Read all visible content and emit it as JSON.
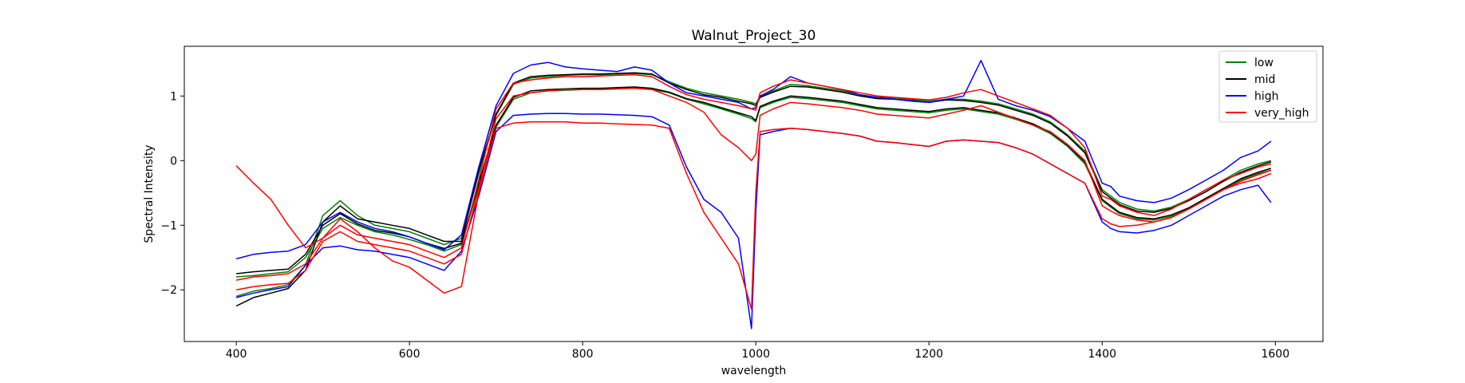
{
  "chart_data": {
    "type": "line",
    "title": "Walnut_Project_30",
    "xlabel": "wavelength",
    "ylabel": "Spectral Intensity",
    "xlim": [
      340,
      1655
    ],
    "ylim": [
      -2.8,
      1.77
    ],
    "xticks": [
      400,
      600,
      800,
      1000,
      1200,
      1400,
      1600
    ],
    "yticks": [
      -2,
      -1,
      0,
      1
    ],
    "grid": false,
    "legend_position": "top-right",
    "x": [
      400,
      420,
      440,
      460,
      480,
      500,
      520,
      540,
      560,
      580,
      600,
      620,
      640,
      660,
      680,
      700,
      720,
      740,
      760,
      780,
      800,
      820,
      840,
      860,
      880,
      900,
      920,
      940,
      960,
      980,
      995,
      1000,
      1005,
      1020,
      1040,
      1060,
      1080,
      1100,
      1120,
      1140,
      1160,
      1180,
      1200,
      1220,
      1240,
      1260,
      1280,
      1300,
      1320,
      1340,
      1360,
      1380,
      1400,
      1410,
      1420,
      1440,
      1460,
      1480,
      1500,
      1520,
      1540,
      1560,
      1580,
      1595
    ],
    "series": [
      {
        "name": "low",
        "color": "#008000",
        "lines": [
          [
            -2.1,
            -2.02,
            -1.98,
            -1.92,
            -1.62,
            -0.85,
            -0.62,
            -0.85,
            -1.0,
            -1.05,
            -1.1,
            -1.2,
            -1.3,
            -1.2,
            -0.2,
            0.7,
            1.18,
            1.28,
            1.3,
            1.32,
            1.33,
            1.33,
            1.34,
            1.35,
            1.33,
            1.22,
            1.12,
            1.05,
            1.0,
            0.95,
            0.9,
            0.88,
            1.0,
            1.08,
            1.18,
            1.16,
            1.12,
            1.08,
            1.02,
            0.98,
            0.97,
            0.95,
            0.92,
            0.95,
            0.95,
            0.92,
            0.88,
            0.8,
            0.72,
            0.6,
            0.4,
            0.15,
            -0.45,
            -0.55,
            -0.65,
            -0.75,
            -0.78,
            -0.72,
            -0.6,
            -0.45,
            -0.3,
            -0.15,
            -0.05,
            0.0
          ],
          [
            -1.8,
            -1.78,
            -1.75,
            -1.72,
            -1.5,
            -1.05,
            -0.88,
            -1.0,
            -1.1,
            -1.15,
            -1.22,
            -1.3,
            -1.4,
            -1.3,
            -0.4,
            0.52,
            0.95,
            1.05,
            1.08,
            1.09,
            1.1,
            1.1,
            1.11,
            1.12,
            1.1,
            1.05,
            0.95,
            0.88,
            0.8,
            0.72,
            0.65,
            0.6,
            0.82,
            0.9,
            0.98,
            0.96,
            0.93,
            0.9,
            0.85,
            0.8,
            0.78,
            0.76,
            0.74,
            0.78,
            0.8,
            0.76,
            0.72,
            0.64,
            0.55,
            0.42,
            0.22,
            -0.05,
            -0.62,
            -0.72,
            -0.82,
            -0.9,
            -0.92,
            -0.86,
            -0.75,
            -0.6,
            -0.45,
            -0.3,
            -0.2,
            -0.15
          ]
        ]
      },
      {
        "name": "mid",
        "color": "#000000",
        "lines": [
          [
            -2.25,
            -2.12,
            -2.05,
            -1.98,
            -1.7,
            -0.95,
            -0.7,
            -0.9,
            -0.95,
            -1.0,
            -1.05,
            -1.15,
            -1.25,
            -1.25,
            -0.15,
            0.72,
            1.2,
            1.3,
            1.32,
            1.33,
            1.34,
            1.34,
            1.35,
            1.36,
            1.34,
            1.2,
            1.1,
            1.02,
            0.98,
            0.92,
            0.88,
            0.85,
            0.98,
            1.06,
            1.15,
            1.14,
            1.1,
            1.06,
            1.0,
            0.96,
            0.95,
            0.93,
            0.9,
            0.94,
            0.93,
            0.9,
            0.86,
            0.78,
            0.7,
            0.58,
            0.38,
            0.12,
            -0.48,
            -0.58,
            -0.68,
            -0.78,
            -0.8,
            -0.74,
            -0.62,
            -0.48,
            -0.32,
            -0.18,
            -0.08,
            -0.02
          ],
          [
            -1.75,
            -1.72,
            -1.7,
            -1.68,
            -1.45,
            -1.0,
            -0.82,
            -0.98,
            -1.08,
            -1.12,
            -1.18,
            -1.28,
            -1.36,
            -1.28,
            -0.35,
            0.55,
            0.98,
            1.08,
            1.1,
            1.11,
            1.12,
            1.12,
            1.13,
            1.14,
            1.12,
            1.06,
            0.96,
            0.9,
            0.82,
            0.74,
            0.68,
            0.62,
            0.84,
            0.92,
            1.0,
            0.98,
            0.95,
            0.92,
            0.87,
            0.82,
            0.8,
            0.78,
            0.76,
            0.8,
            0.82,
            0.78,
            0.74,
            0.66,
            0.57,
            0.44,
            0.24,
            -0.02,
            -0.6,
            -0.7,
            -0.8,
            -0.88,
            -0.9,
            -0.84,
            -0.73,
            -0.58,
            -0.43,
            -0.28,
            -0.18,
            -0.12
          ]
        ]
      },
      {
        "name": "high",
        "color": "#0000ff",
        "lines": [
          [
            -1.52,
            -1.45,
            -1.42,
            -1.4,
            -1.3,
            -0.95,
            -0.8,
            -0.95,
            -1.05,
            -1.1,
            -1.18,
            -1.28,
            -1.38,
            -1.15,
            -0.1,
            0.85,
            1.35,
            1.48,
            1.52,
            1.45,
            1.42,
            1.4,
            1.38,
            1.45,
            1.4,
            1.2,
            1.05,
            1.0,
            0.95,
            0.9,
            0.8,
            0.82,
            1.0,
            1.1,
            1.3,
            1.2,
            1.15,
            1.1,
            1.02,
            0.98,
            0.95,
            0.92,
            0.9,
            0.95,
            1.0,
            1.55,
            0.95,
            0.85,
            0.78,
            0.68,
            0.5,
            0.3,
            -0.35,
            -0.4,
            -0.55,
            -0.62,
            -0.65,
            -0.58,
            -0.45,
            -0.3,
            -0.15,
            0.05,
            0.15,
            0.3
          ],
          [
            -2.12,
            -2.05,
            -2.0,
            -1.95,
            -1.62,
            -1.35,
            -1.32,
            -1.38,
            -1.4,
            -1.45,
            -1.5,
            -1.6,
            -1.7,
            -1.4,
            -0.55,
            0.45,
            0.7,
            0.72,
            0.73,
            0.73,
            0.72,
            0.72,
            0.71,
            0.7,
            0.68,
            0.55,
            -0.1,
            -0.6,
            -0.8,
            -1.2,
            -2.6,
            -0.8,
            0.4,
            0.45,
            0.5,
            0.48,
            0.45,
            0.42,
            0.38,
            0.3,
            0.28,
            0.25,
            0.22,
            0.3,
            0.32,
            0.3,
            0.28,
            0.2,
            0.1,
            -0.05,
            -0.2,
            -0.35,
            -0.95,
            -1.05,
            -1.1,
            -1.12,
            -1.08,
            -1.0,
            -0.85,
            -0.7,
            -0.55,
            -0.45,
            -0.38,
            -0.65
          ]
        ]
      },
      {
        "name": "very_high",
        "color": "#ff0000",
        "lines": [
          [
            -0.08,
            -0.35,
            -0.6,
            -1.0,
            -1.35,
            -1.2,
            -0.9,
            -1.1,
            -1.35,
            -1.55,
            -1.65,
            -1.85,
            -2.05,
            -1.95,
            -0.5,
            0.5,
            0.58,
            0.6,
            0.6,
            0.6,
            0.58,
            0.58,
            0.57,
            0.56,
            0.55,
            0.5,
            -0.2,
            -0.8,
            -1.2,
            -1.6,
            -2.3,
            -0.5,
            0.45,
            0.48,
            0.5,
            0.48,
            0.45,
            0.42,
            0.38,
            0.3,
            0.28,
            0.25,
            0.22,
            0.3,
            0.32,
            0.3,
            0.28,
            0.2,
            0.1,
            -0.05,
            -0.2,
            -0.35,
            -0.9,
            -0.98,
            -1.02,
            -1.0,
            -0.95,
            -0.88,
            -0.75,
            -0.6,
            -0.45,
            -0.35,
            -0.28,
            -0.2
          ],
          [
            -1.85,
            -1.8,
            -1.78,
            -1.75,
            -1.6,
            -1.2,
            -1.0,
            -1.15,
            -1.2,
            -1.25,
            -1.3,
            -1.4,
            -1.5,
            -1.35,
            -0.3,
            0.8,
            1.2,
            1.25,
            1.28,
            1.3,
            1.3,
            1.31,
            1.32,
            1.33,
            1.3,
            1.15,
            1.02,
            0.95,
            0.9,
            0.85,
            0.8,
            0.78,
            1.05,
            1.15,
            1.25,
            1.2,
            1.15,
            1.1,
            1.05,
            1.0,
            0.98,
            0.96,
            0.94,
            0.98,
            1.05,
            1.1,
            1.0,
            0.9,
            0.8,
            0.7,
            0.5,
            0.2,
            -0.55,
            -0.6,
            -0.7,
            -0.8,
            -0.85,
            -0.75,
            -0.6,
            -0.45,
            -0.3,
            -0.2,
            -0.1,
            -0.05
          ],
          [
            -2.0,
            -1.95,
            -1.92,
            -1.9,
            -1.7,
            -1.25,
            -1.1,
            -1.25,
            -1.3,
            -1.35,
            -1.4,
            -1.5,
            -1.6,
            -1.45,
            -0.45,
            0.65,
            1.0,
            1.05,
            1.08,
            1.1,
            1.1,
            1.1,
            1.11,
            1.12,
            1.1,
            1.0,
            0.9,
            0.75,
            0.4,
            0.2,
            0.0,
            0.1,
            0.7,
            0.8,
            0.9,
            0.88,
            0.85,
            0.82,
            0.78,
            0.72,
            0.7,
            0.68,
            0.66,
            0.72,
            0.78,
            0.85,
            0.75,
            0.65,
            0.55,
            0.45,
            0.25,
            0.0,
            -0.7,
            -0.78,
            -0.85,
            -0.92,
            -0.95,
            -0.88,
            -0.75,
            -0.6,
            -0.45,
            -0.32,
            -0.22,
            -0.15
          ]
        ]
      }
    ]
  }
}
